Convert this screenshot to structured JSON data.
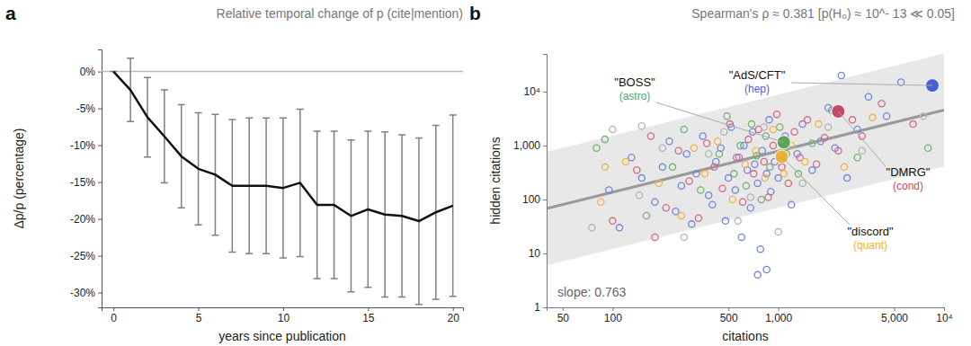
{
  "chart_data": [
    {
      "type": "line",
      "panel": "a",
      "title": "Relative temporal change of p (cite|mention)",
      "x_label": "years since publication",
      "y_label": "Δp/p (percentage)",
      "x": [
        0,
        1,
        2,
        3,
        4,
        5,
        6,
        7,
        8,
        9,
        10,
        11,
        12,
        13,
        14,
        15,
        16,
        17,
        18,
        19,
        20
      ],
      "series": [
        {
          "color": "#111111",
          "line_style": "solid",
          "values": [
            0,
            -2.5,
            -6.2,
            -8.8,
            -11.5,
            -13.2,
            -14.0,
            -15.5,
            -15.5,
            -15.5,
            -15.8,
            -15.1,
            -18.1,
            -18.1,
            -19.6,
            -18.7,
            -19.4,
            -19.6,
            -20.3,
            -19.1,
            -18.2
          ],
          "errors": [
            0,
            4.3,
            5.4,
            6.3,
            7.0,
            7.6,
            8.2,
            9.0,
            9.2,
            9.2,
            9.5,
            10.0,
            10.0,
            10.0,
            10.3,
            10.6,
            11.2,
            11.0,
            11.3,
            11.8,
            12.3
          ]
        }
      ],
      "baseline": 0,
      "xlim": [
        -0.7,
        20.6
      ],
      "xticks": [
        0,
        5,
        10,
        15,
        20
      ],
      "ylim": [
        -32,
        3
      ],
      "yticks": [
        {
          "value": 0,
          "label": "0%"
        },
        {
          "value": -5,
          "label": "-5%"
        },
        {
          "value": -10,
          "label": "-10%"
        },
        {
          "value": -15,
          "label": "-15%"
        },
        {
          "value": -20,
          "label": "-20%"
        },
        {
          "value": -25,
          "label": "-25%"
        },
        {
          "value": -30,
          "label": "-30%"
        }
      ]
    },
    {
      "type": "scatter",
      "panel": "b",
      "title": "Spearman's ρ ≈ 0.381 [p(H₀) ≈ 10^- 13 ≪ 0.05]",
      "x_label": "citations",
      "y_label": "hidden citations",
      "log": true,
      "xlim": [
        40,
        10000
      ],
      "xticks": [
        50,
        100,
        500,
        {
          "value": 1000,
          "label": "1,000"
        },
        {
          "value": 5000,
          "label": "5,000"
        },
        {
          "value": 10000,
          "label": "10⁴"
        }
      ],
      "ylim": [
        1,
        50000
      ],
      "yticks": [
        1,
        10,
        100,
        {
          "value": 1000,
          "label": "1,000"
        },
        {
          "value": 10000,
          "label": "10⁴"
        }
      ],
      "band": {
        "x": [
          40,
          10000
        ],
        "lower": [
          6,
          410
        ],
        "upper": [
          760,
          51000
        ]
      },
      "fit": {
        "label": "slope: 0.763",
        "x": [
          40,
          10000
        ],
        "y": [
          68,
          4560
        ]
      },
      "series": [
        {
          "color": "#7286dc",
          "marker": "open-circle",
          "x": [
            95,
            110,
            130,
            150,
            180,
            200,
            220,
            240,
            260,
            280,
            300,
            320,
            350,
            380,
            400,
            420,
            450,
            480,
            500,
            520,
            550,
            580,
            600,
            620,
            650,
            680,
            700,
            720,
            750,
            780,
            800,
            850,
            880,
            900,
            950,
            1000,
            1100,
            1200,
            1300,
            1400,
            1600,
            1800,
            2000,
            2200,
            2600,
            3000,
            3500,
            4500,
            5500,
            750,
            850,
            2400
          ],
          "values": [
            150,
            30,
            600,
            250,
            90,
            400,
            1200,
            60,
            180,
            700,
            35,
            300,
            1500,
            120,
            80,
            500,
            900,
            40,
            250,
            2200,
            150,
            600,
            20,
            1000,
            350,
            70,
            1800,
            450,
            200,
            12,
            800,
            300,
            3000,
            140,
            500,
            250,
            1500,
            80,
            700,
            2500,
            350,
            1200,
            5000,
            900,
            250,
            2000,
            8000,
            3500,
            15000,
            4,
            5,
            20000
          ]
        },
        {
          "color": "#d26a82",
          "marker": "open-circle",
          "x": [
            100,
            140,
            170,
            210,
            250,
            290,
            330,
            370,
            410,
            460,
            510,
            560,
            610,
            660,
            710,
            760,
            820,
            870,
            930,
            980,
            1050,
            1150,
            1250,
            1350,
            1500,
            1700,
            1900,
            2300,
            2800,
            3200,
            4200,
            6500,
            180
          ],
          "values": [
            40,
            350,
            1500,
            70,
            800,
            220,
            45,
            1100,
            400,
            160,
            2500,
            600,
            90,
            1300,
            300,
            2000,
            500,
            110,
            1000,
            3800,
            400,
            200,
            1800,
            600,
            3000,
            450,
            1400,
            800,
            3000,
            1500,
            6000,
            2500,
            20
          ]
        },
        {
          "color": "#72b272",
          "marker": "open-circle",
          "x": [
            80,
            90,
            160,
            230,
            270,
            340,
            440,
            490,
            540,
            590,
            640,
            690,
            740,
            790,
            840,
            890,
            1020,
            1120,
            1320,
            1600,
            2100,
            3000,
            8000
          ],
          "values": [
            900,
            1300,
            50,
            400,
            2000,
            150,
            700,
            3500,
            300,
            1000,
            180,
            2500,
            650,
            100,
            1500,
            400,
            2200,
            700,
            300,
            1100,
            4500,
            600,
            900
          ]
        },
        {
          "color": "#f1b445",
          "marker": "open-circle",
          "x": [
            85,
            120,
            190,
            260,
            310,
            360,
            430,
            530,
            630,
            730,
            830,
            930,
            1080,
            1200,
            1450,
            1750,
            2500,
            3700,
            90
          ],
          "values": [
            90,
            500,
            200,
            50,
            900,
            300,
            1200,
            100,
            450,
            800,
            250,
            2000,
            300,
            1000,
            500,
            2500,
            400,
            3300,
            400
          ]
        },
        {
          "color": "#b4b4b4",
          "marker": "open-circle",
          "x": [
            75,
            100,
            145,
            200,
            270,
            380,
            470,
            570,
            680,
            820,
            1000,
            1400,
            2000,
            3200,
            7500,
            150
          ],
          "values": [
            30,
            2000,
            120,
            900,
            20,
            700,
            1800,
            40,
            110,
            2200,
            25,
            200,
            2200,
            800,
            3500,
            2300
          ]
        }
      ],
      "highlights": [
        {
          "label": "\"BOSS\"",
          "sublabel": "(astro)",
          "color": "#5aa55a",
          "x": 1080,
          "y": 1150
        },
        {
          "label": "\"AdS/CFT\"",
          "sublabel": "(hep)",
          "color": "#4a5fd0",
          "x": 8500,
          "y": 13000
        },
        {
          "label": "\"DMRG\"",
          "sublabel": "(cond)",
          "color": "#c44a66",
          "x": 2300,
          "y": 4300
        },
        {
          "label": "\"discord\"",
          "sublabel": "(quant)",
          "color": "#f0b030",
          "x": 1050,
          "y": 620
        }
      ]
    }
  ]
}
